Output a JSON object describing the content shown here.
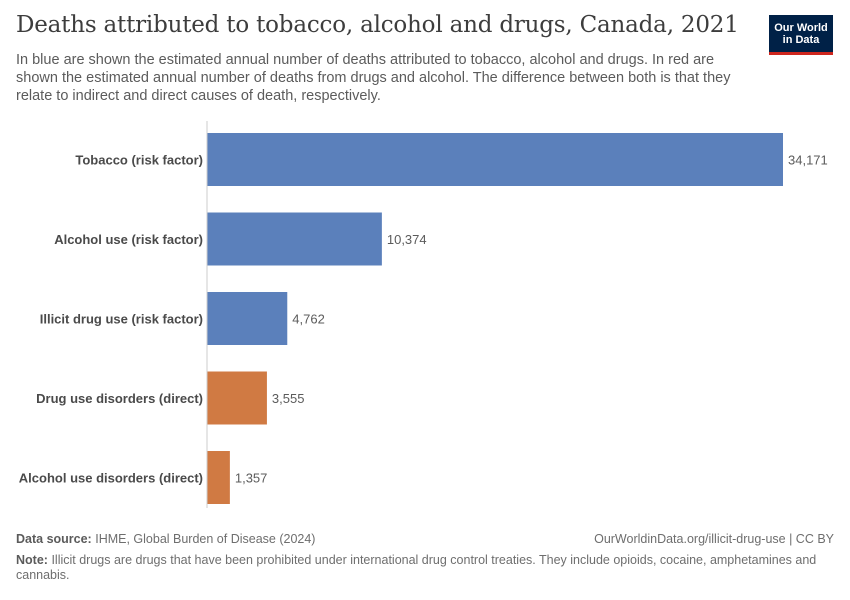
{
  "header": {
    "title": "Deaths attributed to tobacco, alcohol and drugs, Canada, 2021",
    "subtitle": "In blue are shown the estimated annual number of deaths attributed to tobacco, alcohol and drugs. In red are shown the estimated annual number of deaths from drugs and alcohol. The difference between both is that they relate to indirect and direct causes of death, respectively.",
    "logo_line1": "Our World",
    "logo_line2": "in Data"
  },
  "footer": {
    "source_label": "Data source:",
    "source_text": "IHME, Global Burden of Disease (2024)",
    "url_text": "OurWorldinData.org/illicit-drug-use | CC BY",
    "note_label": "Note:",
    "note_text": "Illicit drugs are drugs that have been prohibited under international drug control treaties. They include opioids, cocaine, amphetamines and cannabis."
  },
  "colors": {
    "risk_factor": "#5b80bb",
    "direct": "#d07a43",
    "axis": "#cccccc",
    "logo_bg": "#002147",
    "logo_accent": "#ce261e"
  },
  "chart_data": {
    "type": "bar",
    "orientation": "horizontal",
    "categories": [
      "Tobacco (risk factor)",
      "Alcohol use (risk factor)",
      "Illicit drug use (risk factor)",
      "Drug use disorders (direct)",
      "Alcohol use disorders (direct)"
    ],
    "values": [
      34171,
      10374,
      4762,
      3555,
      1357
    ],
    "value_labels": [
      "34,171",
      "10,374",
      "4,762",
      "3,555",
      "1,357"
    ],
    "groups": [
      "risk_factor",
      "risk_factor",
      "risk_factor",
      "direct",
      "direct"
    ],
    "xlim": [
      0,
      34171
    ],
    "grid": false
  }
}
